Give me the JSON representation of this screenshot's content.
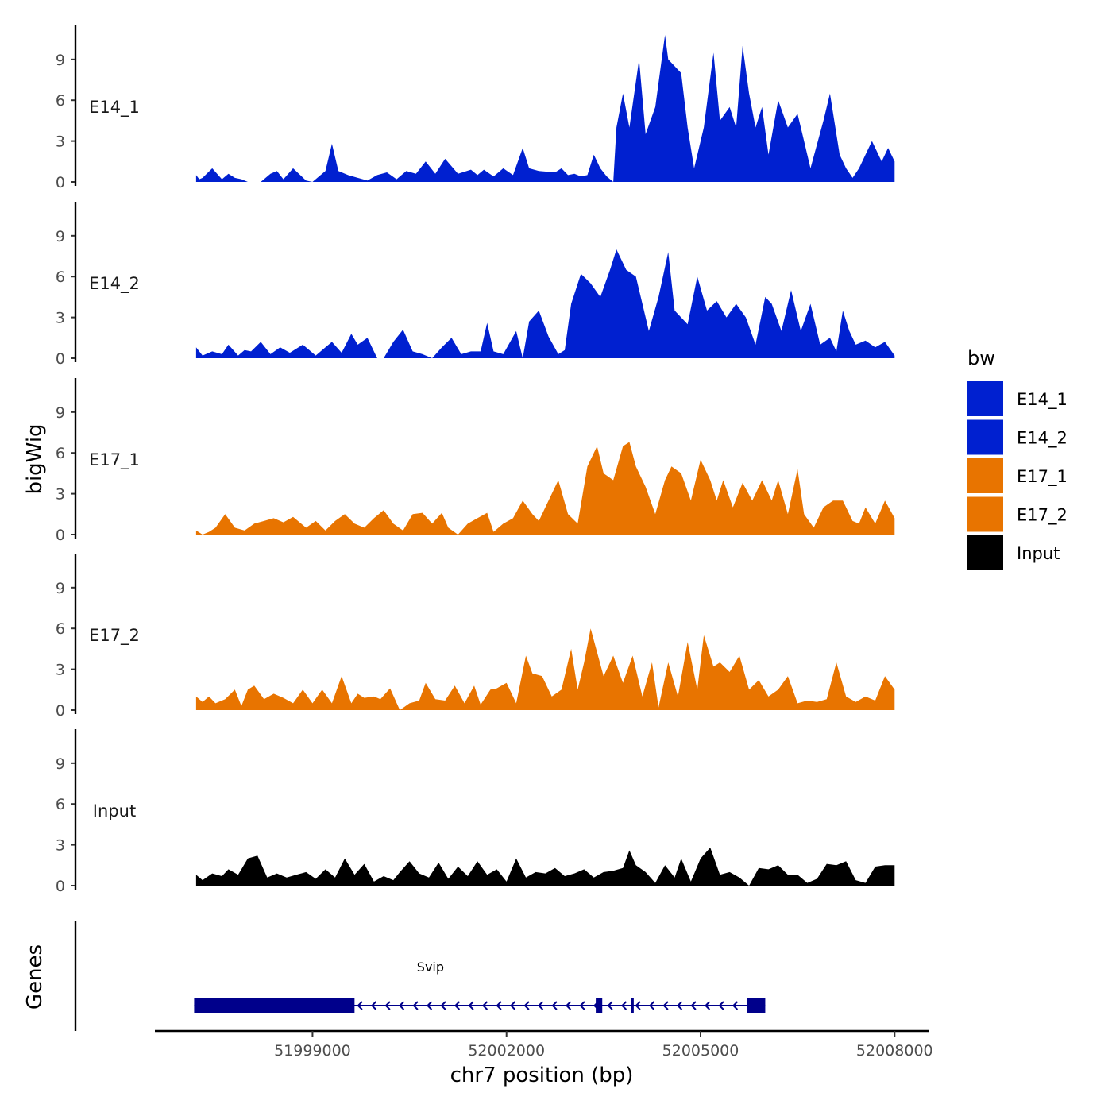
{
  "chart_data": {
    "type": "area",
    "tracks_ylabel": "bigWig",
    "genes_ylabel": "Genes",
    "xlabel": "chr7 position (bp)",
    "xlim": [
      51996600,
      52008500
    ],
    "x_ticks": [
      51999000,
      52002000,
      52005000,
      52008000
    ],
    "x_tick_labels": [
      "51999000",
      "52002000",
      "52005000",
      "52008000"
    ],
    "ylim": [
      0,
      11.5
    ],
    "y_ticks": [
      0,
      3,
      6,
      9
    ],
    "y_tick_labels": [
      "0",
      "3",
      "6",
      "9"
    ],
    "legend": {
      "title": "bw",
      "entries": [
        {
          "label": "E14_1",
          "color": "#0020d0"
        },
        {
          "label": "E14_2",
          "color": "#0020d0"
        },
        {
          "label": "E17_1",
          "color": "#e87400"
        },
        {
          "label": "E17_2",
          "color": "#e87400"
        },
        {
          "label": "Input",
          "color": "#000000"
        }
      ]
    },
    "tracks": [
      {
        "name": "E14_1",
        "color": "#0020d0",
        "x": [
          51997200,
          51997250,
          51997300,
          51997450,
          51997600,
          51997700,
          51997800,
          51997900,
          51998000,
          51998200,
          51998350,
          51998450,
          51998550,
          51998700,
          51998900,
          51999000,
          51999200,
          51999300,
          51999400,
          51999550,
          51999700,
          51999850,
          52000000,
          52000150,
          52000300,
          52000450,
          52000600,
          52000750,
          52000900,
          52001050,
          52001250,
          52001450,
          52001550,
          52001650,
          52001800,
          52001950,
          52002100,
          52002250,
          52002350,
          52002500,
          52002750,
          52002850,
          52002950,
          52003050,
          52003150,
          52003250,
          52003350,
          52003450,
          52003550,
          52003650,
          52003700,
          52003800,
          52003900,
          52004050,
          52004150,
          52004300,
          52004450,
          52004500,
          52004700,
          52004800,
          52004900,
          52005050,
          52005200,
          52005300,
          52005450,
          52005550,
          52005650,
          52005750,
          52005850,
          52005950,
          52006050,
          52006200,
          52006350,
          52006500,
          52006600,
          52006700,
          52006900,
          52007000,
          52007150,
          52007250,
          52007350,
          52007450,
          52007550,
          52007650,
          52007800,
          52007900,
          52008000
        ],
        "y": [
          0.5,
          0.2,
          0.3,
          1.0,
          0.2,
          0.6,
          0.3,
          0.2,
          0.0,
          0.0,
          0.6,
          0.8,
          0.2,
          1.0,
          0.1,
          0.0,
          0.8,
          2.8,
          0.8,
          0.5,
          0.3,
          0.1,
          0.5,
          0.7,
          0.2,
          0.8,
          0.6,
          1.5,
          0.6,
          1.7,
          0.6,
          0.9,
          0.5,
          0.9,
          0.4,
          1.0,
          0.5,
          2.5,
          1.0,
          0.8,
          0.7,
          1.0,
          0.5,
          0.6,
          0.4,
          0.5,
          2.0,
          1.0,
          0.4,
          0.0,
          4.0,
          6.5,
          4.0,
          9.0,
          3.5,
          5.5,
          10.8,
          9.0,
          8.0,
          4.0,
          1.0,
          4.0,
          9.5,
          4.5,
          5.5,
          4.0,
          10.0,
          6.5,
          4.0,
          5.5,
          2.0,
          6.0,
          4.0,
          5.0,
          3.0,
          1.0,
          4.5,
          6.5,
          2.0,
          1.0,
          0.3,
          1.0,
          2.0,
          3.0,
          1.5,
          2.5,
          1.5
        ]
      },
      {
        "name": "E14_2",
        "color": "#0020d0",
        "x": [
          51997200,
          51997300,
          51997450,
          51997600,
          51997700,
          51997850,
          51997950,
          51998050,
          51998200,
          51998350,
          51998500,
          51998650,
          51998850,
          51999050,
          51999200,
          51999300,
          51999450,
          51999600,
          51999700,
          51999850,
          52000000,
          52000100,
          52000250,
          52000400,
          52000550,
          52000700,
          52000850,
          52001000,
          52001150,
          52001300,
          52001450,
          52001600,
          52001700,
          52001800,
          52001950,
          52002150,
          52002250,
          52002350,
          52002500,
          52002650,
          52002800,
          52002900,
          52003000,
          52003150,
          52003300,
          52003450,
          52003600,
          52003700,
          52003850,
          52004000,
          52004200,
          52004350,
          52004500,
          52004600,
          52004800,
          52004950,
          52005100,
          52005250,
          52005400,
          52005550,
          52005700,
          52005850,
          52006000,
          52006100,
          52006250,
          52006400,
          52006550,
          52006700,
          52006850,
          52007000,
          52007100,
          52007200,
          52007300,
          52007400,
          52007550,
          52007700,
          52007850,
          52008000
        ],
        "y": [
          0.8,
          0.2,
          0.5,
          0.3,
          1.0,
          0.2,
          0.6,
          0.5,
          1.2,
          0.3,
          0.8,
          0.4,
          1.0,
          0.2,
          0.8,
          1.2,
          0.4,
          1.8,
          1.0,
          1.5,
          0.0,
          0.0,
          1.2,
          2.1,
          0.5,
          0.3,
          0.0,
          0.8,
          1.5,
          0.3,
          0.5,
          0.5,
          2.6,
          0.5,
          0.3,
          2.0,
          0.0,
          2.7,
          3.5,
          1.6,
          0.3,
          0.6,
          4.0,
          6.2,
          5.5,
          4.5,
          6.5,
          8.0,
          6.5,
          6.0,
          2.0,
          4.5,
          7.8,
          3.5,
          2.5,
          6.0,
          3.5,
          4.2,
          3.0,
          4.0,
          3.0,
          1.0,
          4.5,
          4.0,
          2.0,
          5.0,
          2.0,
          4.0,
          1.0,
          1.5,
          0.5,
          3.5,
          2.0,
          1.0,
          1.3,
          0.8,
          1.2,
          0.2
        ]
      },
      {
        "name": "E17_1",
        "color": "#e87400",
        "x": [
          51997200,
          51997300,
          51997400,
          51997500,
          51997650,
          51997800,
          51997950,
          51998100,
          51998250,
          51998400,
          51998550,
          51998700,
          51998900,
          51999050,
          51999200,
          51999350,
          51999500,
          51999650,
          51999800,
          51999950,
          52000100,
          52000250,
          52000400,
          52000550,
          52000700,
          52000850,
          52001000,
          52001100,
          52001250,
          52001400,
          52001550,
          52001700,
          52001800,
          52001950,
          52002100,
          52002250,
          52002400,
          52002500,
          52002650,
          52002800,
          52002950,
          52003100,
          52003250,
          52003400,
          52003500,
          52003650,
          52003800,
          52003900,
          52004000,
          52004150,
          52004300,
          52004450,
          52004550,
          52004700,
          52004850,
          52005000,
          52005150,
          52005250,
          52005350,
          52005500,
          52005650,
          52005800,
          52005950,
          52006100,
          52006200,
          52006350,
          52006500,
          52006600,
          52006750,
          52006900,
          52007050,
          52007200,
          52007350,
          52007450,
          52007550,
          52007700,
          52007850,
          52008000
        ],
        "y": [
          0.3,
          0.0,
          0.2,
          0.5,
          1.5,
          0.5,
          0.3,
          0.8,
          1.0,
          1.2,
          0.9,
          1.3,
          0.5,
          1.0,
          0.3,
          1.0,
          1.5,
          0.8,
          0.5,
          1.2,
          1.8,
          0.8,
          0.3,
          1.5,
          1.6,
          0.8,
          1.6,
          0.5,
          0.0,
          0.8,
          1.2,
          1.6,
          0.2,
          0.8,
          1.2,
          2.5,
          1.5,
          1.0,
          2.5,
          4.0,
          1.5,
          0.8,
          5.0,
          6.5,
          4.5,
          4.0,
          6.5,
          6.8,
          5.0,
          3.5,
          1.5,
          4.0,
          5.0,
          4.5,
          2.5,
          5.5,
          4.0,
          2.5,
          4.0,
          2.0,
          3.8,
          2.5,
          4.0,
          2.5,
          4.0,
          1.5,
          4.8,
          1.5,
          0.5,
          2.0,
          2.5,
          2.5,
          1.0,
          0.8,
          2.0,
          0.8,
          2.5,
          1.2
        ]
      },
      {
        "name": "E17_2",
        "color": "#e87400",
        "x": [
          51997200,
          51997300,
          51997400,
          51997500,
          51997650,
          51997800,
          51997900,
          51998000,
          51998100,
          51998250,
          51998400,
          51998550,
          51998700,
          51998850,
          51999000,
          51999150,
          51999300,
          51999450,
          51999600,
          51999700,
          51999800,
          51999950,
          52000050,
          52000200,
          52000350,
          52000500,
          52000650,
          52000750,
          52000900,
          52001050,
          52001200,
          52001350,
          52001500,
          52001600,
          52001750,
          52001850,
          52002000,
          52002150,
          52002300,
          52002400,
          52002550,
          52002700,
          52002850,
          52003000,
          52003100,
          52003200,
          52003300,
          52003500,
          52003650,
          52003800,
          52003950,
          52004100,
          52004250,
          52004350,
          52004500,
          52004650,
          52004800,
          52004950,
          52005050,
          52005200,
          52005300,
          52005450,
          52005600,
          52005750,
          52005900,
          52006050,
          52006200,
          52006350,
          52006500,
          52006650,
          52006800,
          52006950,
          52007100,
          52007250,
          52007400,
          52007550,
          52007700,
          52007850,
          52008000
        ],
        "y": [
          1.0,
          0.6,
          1.0,
          0.5,
          0.8,
          1.5,
          0.3,
          1.5,
          1.8,
          0.8,
          1.2,
          0.9,
          0.5,
          1.5,
          0.5,
          1.5,
          0.5,
          2.5,
          0.5,
          1.2,
          0.9,
          1.0,
          0.8,
          1.6,
          0.0,
          0.5,
          0.7,
          2.0,
          0.8,
          0.7,
          1.8,
          0.5,
          1.8,
          0.4,
          1.5,
          1.6,
          2.0,
          0.5,
          4.0,
          2.7,
          2.5,
          1.0,
          1.5,
          4.5,
          1.5,
          3.5,
          6.0,
          2.5,
          4.0,
          2.0,
          4.0,
          1.0,
          3.5,
          0.2,
          3.5,
          1.0,
          5.0,
          1.5,
          5.5,
          3.2,
          3.5,
          2.8,
          4.0,
          1.5,
          2.2,
          1.0,
          1.5,
          2.5,
          0.5,
          0.7,
          0.6,
          0.8,
          3.5,
          1.0,
          0.6,
          1.0,
          0.7,
          2.5,
          1.5
        ]
      },
      {
        "name": "Input",
        "color": "#000000",
        "x": [
          51997200,
          51997300,
          51997450,
          51997600,
          51997700,
          51997850,
          51998000,
          51998150,
          51998300,
          51998450,
          51998600,
          51998750,
          51998900,
          51999050,
          51999200,
          51999350,
          51999500,
          51999650,
          51999800,
          51999950,
          52000100,
          52000250,
          52000350,
          52000500,
          52000650,
          52000800,
          52000950,
          52001100,
          52001250,
          52001400,
          52001550,
          52001700,
          52001850,
          52002000,
          52002150,
          52002300,
          52002450,
          52002600,
          52002750,
          52002900,
          52003050,
          52003200,
          52003350,
          52003500,
          52003650,
          52003800,
          52003900,
          52004000,
          52004150,
          52004300,
          52004450,
          52004600,
          52004700,
          52004850,
          52005000,
          52005150,
          52005300,
          52005450,
          52005600,
          52005750,
          52005900,
          52006050,
          52006200,
          52006350,
          52006500,
          52006650,
          52006800,
          52006950,
          52007100,
          52007250,
          52007400,
          52007550,
          52007700,
          52007850,
          52008000
        ],
        "y": [
          0.8,
          0.4,
          0.9,
          0.7,
          1.2,
          0.8,
          2.0,
          2.2,
          0.6,
          0.9,
          0.6,
          0.8,
          1.0,
          0.5,
          1.2,
          0.6,
          2.0,
          0.8,
          1.6,
          0.3,
          0.7,
          0.4,
          1.0,
          1.8,
          0.9,
          0.6,
          1.7,
          0.5,
          1.4,
          0.7,
          1.8,
          0.8,
          1.2,
          0.3,
          2.0,
          0.6,
          1.0,
          0.9,
          1.3,
          0.7,
          0.9,
          1.2,
          0.6,
          1.0,
          1.1,
          1.3,
          2.6,
          1.5,
          1.0,
          0.2,
          1.5,
          0.6,
          2.0,
          0.3,
          2.0,
          2.8,
          0.8,
          1.0,
          0.6,
          0.0,
          1.3,
          1.2,
          1.5,
          0.8,
          0.8,
          0.2,
          0.5,
          1.6,
          1.5,
          1.8,
          0.4,
          0.2,
          1.4,
          1.5,
          1.5
        ]
      }
    ],
    "genes": [
      {
        "name": "Svip",
        "color": "#00008b",
        "strand": "-",
        "start": 51997170,
        "end": 52006000,
        "exons": [
          [
            51997170,
            51999650
          ],
          [
            52003380,
            52003480
          ],
          [
            52003930,
            52003960
          ],
          [
            52005720,
            52006000
          ]
        ]
      }
    ]
  }
}
